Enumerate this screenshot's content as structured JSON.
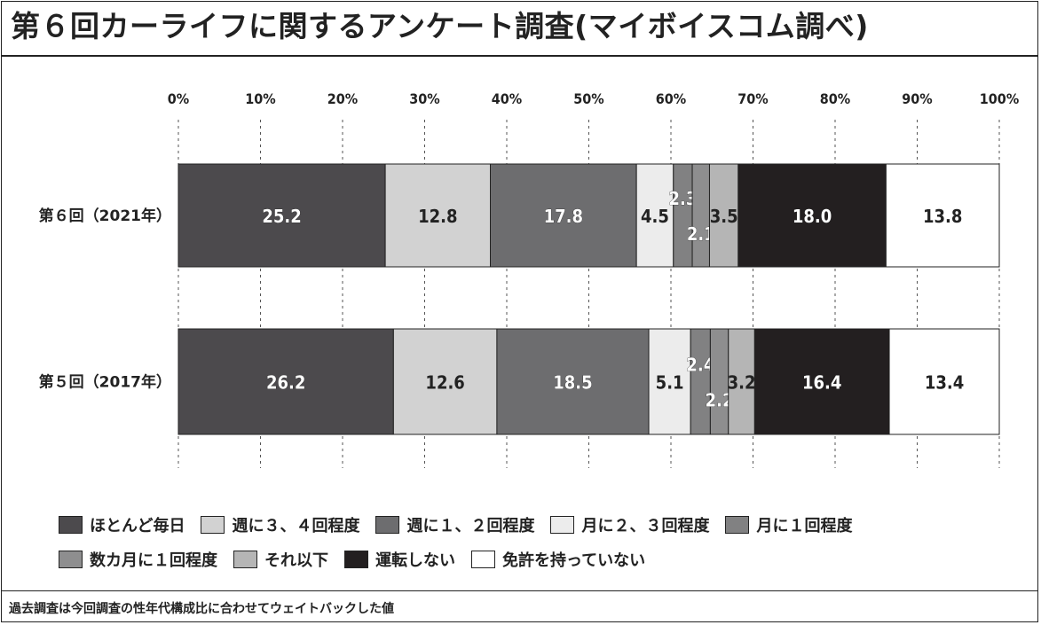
{
  "title": "第６回カーライフに関するアンケート調査(マイボイスコム調べ)",
  "footnote": "過去調査は今回調査の性年代構成比に合わせてウェイトバックした値",
  "chart_data": {
    "type": "bar",
    "orientation": "horizontal",
    "stacked": true,
    "percent_stacked": true,
    "xlim": [
      0,
      100
    ],
    "xticks": [
      "0%",
      "10%",
      "20%",
      "30%",
      "40%",
      "50%",
      "60%",
      "70%",
      "80%",
      "90%",
      "100%"
    ],
    "grid": "vertical dotted",
    "legend_position": "bottom",
    "categories": [
      "第６回（2021年）",
      "第５回（2017年）"
    ],
    "series": [
      {
        "name": "ほとんど毎日",
        "color": "#4c4a4d",
        "values": [
          25.2,
          26.2
        ],
        "labels": [
          "25.2",
          "26.2"
        ]
      },
      {
        "name": "週に３、４回程度",
        "color": "#d2d2d2",
        "values": [
          12.8,
          12.6
        ],
        "labels": [
          "12.8",
          "12.6"
        ]
      },
      {
        "name": "週に１、２回程度",
        "color": "#6d6d6f",
        "values": [
          17.8,
          18.5
        ],
        "labels": [
          "17.8",
          "18.5"
        ]
      },
      {
        "name": "月に２、３回程度",
        "color": "#ececec",
        "values": [
          4.5,
          5.1
        ],
        "labels": [
          "4.5",
          "5.1"
        ]
      },
      {
        "name": "月に１回程度",
        "color": "#818182",
        "values": [
          2.3,
          2.4
        ],
        "labels": [
          "2.3",
          "2.4"
        ]
      },
      {
        "name": "数カ月に１回程度",
        "color": "#8e8e8f",
        "values": [
          2.1,
          2.2
        ],
        "labels": [
          "2.1",
          "2.2"
        ]
      },
      {
        "name": "それ以下",
        "color": "#b5b5b5",
        "values": [
          3.5,
          3.2
        ],
        "labels": [
          "3.5",
          "3.2"
        ]
      },
      {
        "name": "運転しない",
        "color": "#231f20",
        "values": [
          18.0,
          16.4
        ],
        "labels": [
          "18.0",
          "16.4"
        ]
      },
      {
        "name": "免許を持っていない",
        "color": "#ffffff",
        "values": [
          13.8,
          13.4
        ],
        "labels": [
          "13.8",
          "13.4"
        ]
      }
    ]
  }
}
